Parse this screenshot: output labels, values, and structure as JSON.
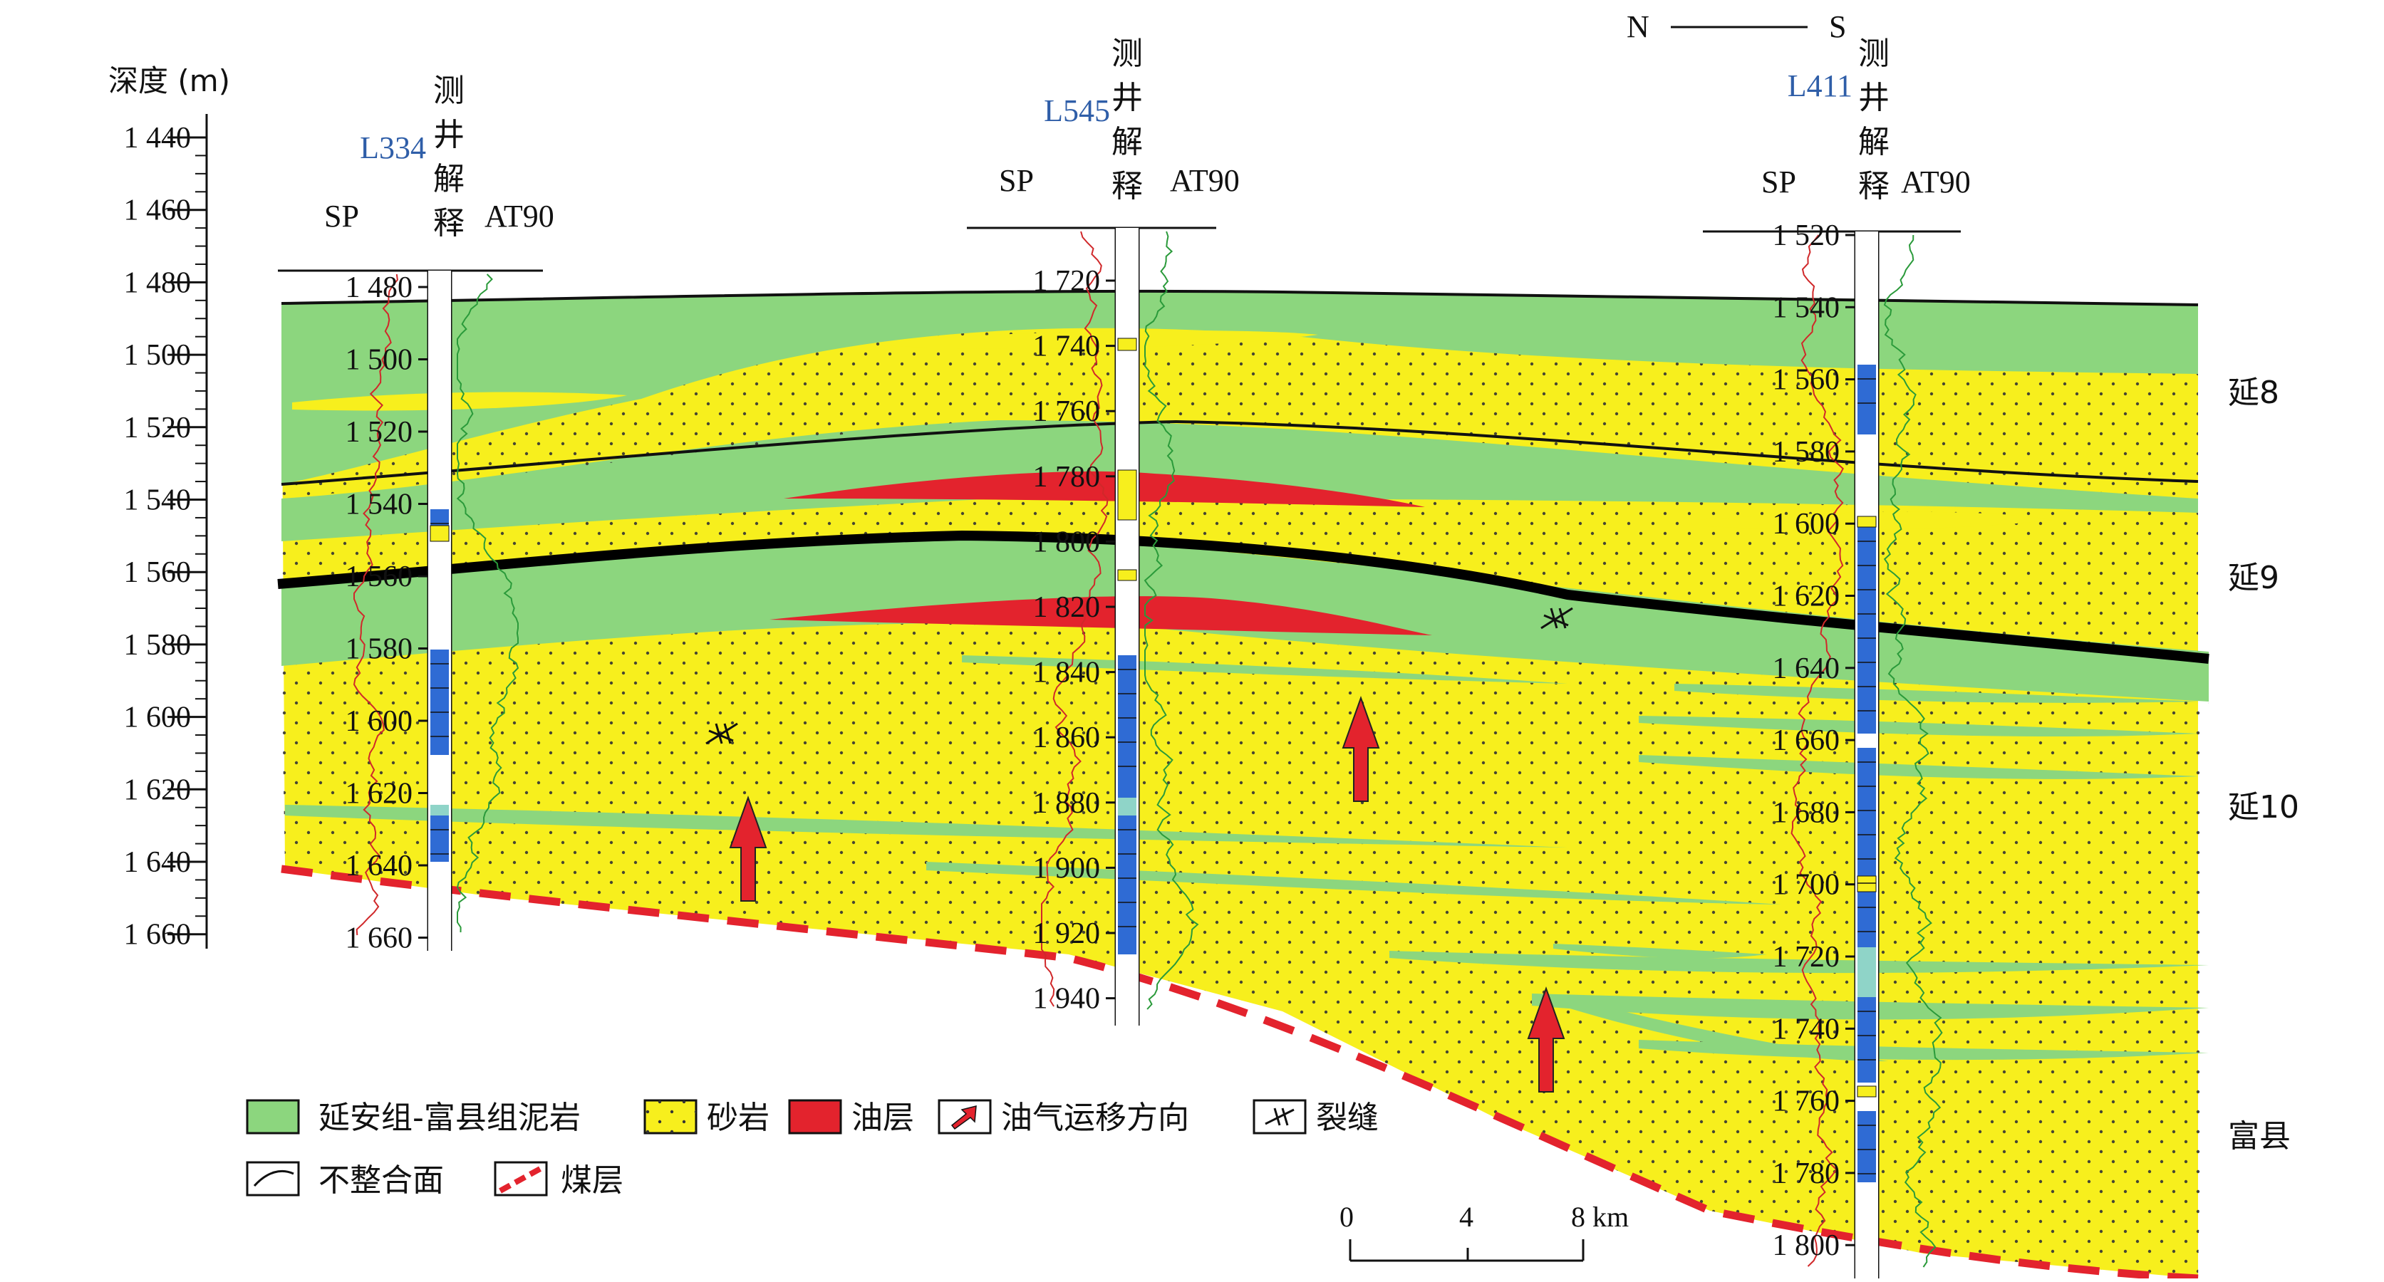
{
  "header": {
    "depth_label": "深度 (m)",
    "north": "N",
    "south": "S"
  },
  "depth_scale": {
    "ticks": [
      "1 440",
      "1 460",
      "1 480",
      "1 500",
      "1 520",
      "1 540",
      "1 560",
      "1 580",
      "1 600",
      "1 620",
      "1 640",
      "1 660"
    ]
  },
  "wells": [
    {
      "name": "L334",
      "interp_label": [
        "测",
        "井",
        "解",
        "释"
      ],
      "sp_label": "SP",
      "at_label": "AT90",
      "ticks": [
        "1 480",
        "1 500",
        "1 520",
        "1 540",
        "1 560",
        "1 580",
        "1 600",
        "1 620",
        "1 640",
        "1 660"
      ]
    },
    {
      "name": "L545",
      "interp_label": [
        "测",
        "井",
        "解",
        "释"
      ],
      "sp_label": "SP",
      "at_label": "AT90",
      "ticks": [
        "1 720",
        "1 740",
        "1 760",
        "1 780",
        "1 800",
        "1 820",
        "1 840",
        "1 860",
        "1 880",
        "1 900",
        "1 920",
        "1 940"
      ]
    },
    {
      "name": "L411",
      "interp_label": [
        "测",
        "井",
        "解",
        "释"
      ],
      "sp_label": "SP",
      "at_label": "AT90",
      "ticks": [
        "1 520",
        "1 540",
        "1 560",
        "1 580",
        "1 600",
        "1 620",
        "1 640",
        "1 660",
        "1 680",
        "1 700",
        "1 720",
        "1 740",
        "1 760",
        "1 780",
        "1 800"
      ]
    }
  ],
  "formations": [
    "延8",
    "延9",
    "延10",
    "富县"
  ],
  "legend": {
    "mudstone": "延安组-富县组泥岩",
    "sandstone": "砂岩",
    "oil": "油层",
    "migration": "油气运移方向",
    "fracture": "裂缝",
    "unconformity": "不整合面",
    "coal": "煤层"
  },
  "scale_bar": {
    "labels": [
      "0",
      "4",
      "8 km"
    ]
  },
  "colors": {
    "mudstone": "#8cd67e",
    "sandstone": "#f7ef1d",
    "oil": "#e3232d",
    "well_blue": "#2f6bd4",
    "well_name": "#2f5ea8",
    "sp_curve": "#d0282a",
    "at_curve": "#2a9a3a"
  }
}
